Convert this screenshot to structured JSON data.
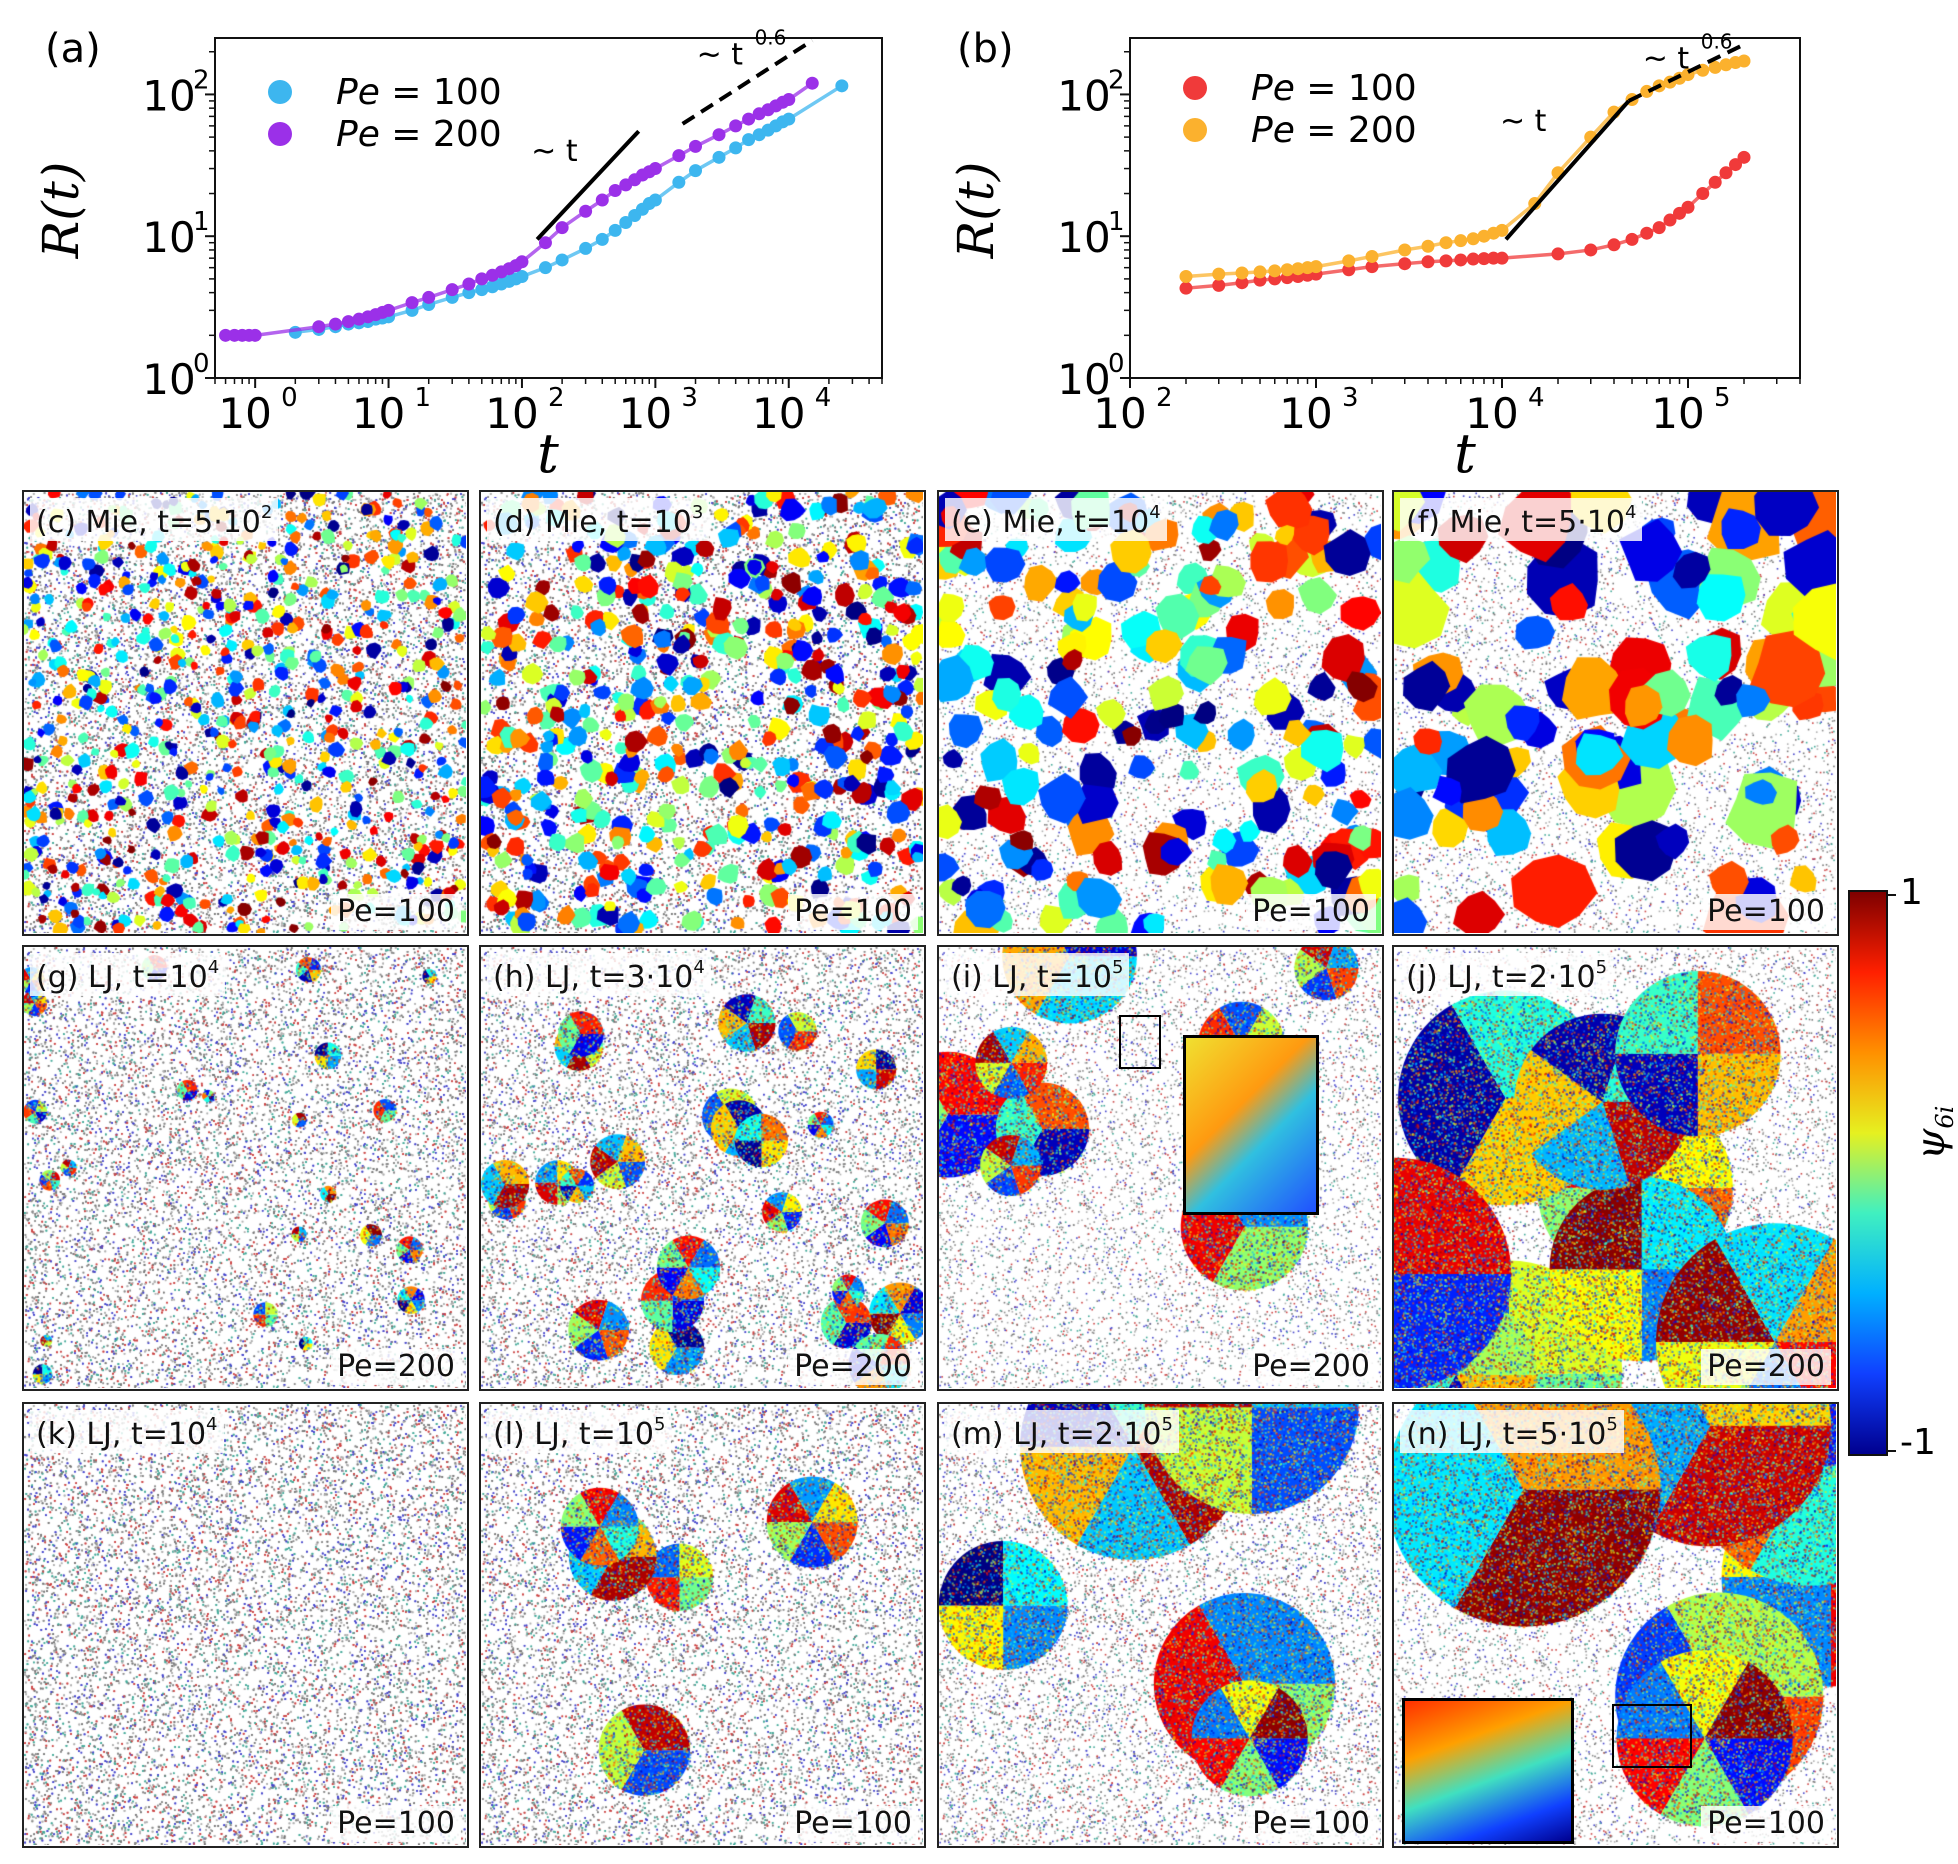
{
  "chart_data": [
    {
      "id": "a",
      "type": "scatter",
      "panel_label": "(a)",
      "xlabel": "t",
      "ylabel": "R(t)",
      "xscale": "log",
      "yscale": "log",
      "xlim": [
        0.5,
        50000
      ],
      "ylim": [
        1,
        250
      ],
      "xticks": [
        1,
        10,
        100,
        1000,
        10000
      ],
      "xtick_exponents": [
        "0",
        "1",
        "2",
        "3",
        "4"
      ],
      "yticks": [
        1,
        10,
        100
      ],
      "ytick_exponents": [
        "0",
        "1",
        "2"
      ],
      "tick_base": "10",
      "legend_position": "upper-left",
      "series": [
        {
          "name": "Pe = 100",
          "legend_italic": "Pe",
          "legend_rest": " = 100",
          "color": "#3db6ef",
          "x": [
            2,
            3,
            4,
            5,
            6,
            7,
            8,
            9,
            10,
            15,
            20,
            30,
            40,
            50,
            60,
            70,
            80,
            90,
            100,
            150,
            200,
            300,
            400,
            500,
            600,
            700,
            800,
            900,
            1000,
            1500,
            2000,
            3000,
            4000,
            5000,
            6000,
            7000,
            8000,
            9000,
            10000,
            25000
          ],
          "y": [
            2.1,
            2.2,
            2.3,
            2.4,
            2.45,
            2.5,
            2.6,
            2.65,
            2.7,
            3.0,
            3.3,
            3.7,
            4.0,
            4.2,
            4.4,
            4.6,
            4.8,
            5.0,
            5.2,
            6.0,
            6.8,
            8.2,
            9.5,
            11,
            12.5,
            14,
            15.5,
            17,
            18,
            24,
            29,
            36,
            42,
            48,
            52,
            56,
            60,
            64,
            67,
            115
          ]
        },
        {
          "name": "Pe = 200",
          "legend_italic": "Pe",
          "legend_rest": " = 200",
          "color": "#9b30e8",
          "x": [
            0.6,
            0.7,
            0.8,
            0.9,
            1,
            3,
            4,
            5,
            6,
            7,
            8,
            9,
            10,
            15,
            20,
            30,
            40,
            50,
            60,
            70,
            80,
            90,
            100,
            150,
            200,
            300,
            400,
            500,
            600,
            700,
            800,
            900,
            1000,
            1500,
            2000,
            3000,
            4000,
            5000,
            6000,
            7000,
            8000,
            9000,
            10000,
            15000
          ],
          "y": [
            2.0,
            2.0,
            2.0,
            2.0,
            2.0,
            2.3,
            2.4,
            2.5,
            2.6,
            2.7,
            2.8,
            2.9,
            3.0,
            3.4,
            3.7,
            4.2,
            4.6,
            5.0,
            5.3,
            5.6,
            5.9,
            6.2,
            6.6,
            9.0,
            11.5,
            15,
            18,
            21,
            23,
            25,
            27,
            28.5,
            30,
            37,
            43,
            52,
            60,
            67,
            73,
            78,
            83,
            88,
            92,
            120
          ]
        }
      ],
      "annotations": [
        {
          "text": "~ t",
          "style": "solid",
          "x1": 130,
          "y1": 9.5,
          "x2": 750,
          "y2": 55
        },
        {
          "text": "~ t",
          "sup": "0.6",
          "style": "dashed",
          "x1": 1600,
          "y1": 62,
          "x2": 15000,
          "y2": 240
        }
      ]
    },
    {
      "id": "b",
      "type": "scatter",
      "panel_label": "(b)",
      "xlabel": "t",
      "ylabel": "R(t)",
      "xscale": "log",
      "yscale": "log",
      "xlim": [
        100,
        400000
      ],
      "ylim": [
        1,
        250
      ],
      "xticks": [
        100,
        1000,
        10000,
        100000
      ],
      "xtick_exponents": [
        "2",
        "3",
        "4",
        "5"
      ],
      "yticks": [
        1,
        10,
        100
      ],
      "ytick_exponents": [
        "0",
        "1",
        "2"
      ],
      "tick_base": "10",
      "legend_position": "upper-left",
      "series": [
        {
          "name": "Pe = 100",
          "legend_italic": "Pe",
          "legend_rest": " = 100",
          "color": "#f03a3a",
          "x": [
            200,
            300,
            400,
            500,
            600,
            700,
            800,
            900,
            1000,
            1500,
            2000,
            3000,
            4000,
            5000,
            6000,
            7000,
            8000,
            9000,
            10000,
            20000,
            30000,
            40000,
            50000,
            60000,
            70000,
            80000,
            90000,
            100000,
            120000,
            140000,
            160000,
            180000,
            200000
          ],
          "y": [
            4.3,
            4.5,
            4.7,
            4.9,
            5.0,
            5.1,
            5.2,
            5.3,
            5.4,
            5.8,
            6.1,
            6.4,
            6.6,
            6.7,
            6.8,
            6.9,
            6.95,
            7.0,
            7.0,
            7.5,
            8.0,
            8.7,
            9.5,
            10.5,
            11.5,
            13,
            14.5,
            16,
            20,
            24,
            28,
            32,
            36
          ]
        },
        {
          "name": "Pe = 200",
          "legend_italic": "Pe",
          "legend_rest": " = 200",
          "color": "#fbb12e",
          "x": [
            200,
            300,
            400,
            500,
            600,
            700,
            800,
            900,
            1000,
            1500,
            2000,
            3000,
            4000,
            5000,
            6000,
            7000,
            8000,
            9000,
            10000,
            15000,
            20000,
            30000,
            40000,
            50000,
            60000,
            70000,
            80000,
            90000,
            100000,
            120000,
            140000,
            160000,
            180000,
            200000
          ],
          "y": [
            5.2,
            5.4,
            5.5,
            5.6,
            5.7,
            5.8,
            5.9,
            6.0,
            6.1,
            6.7,
            7.2,
            8.0,
            8.5,
            9.0,
            9.3,
            9.6,
            10.0,
            10.5,
            11.0,
            17,
            28,
            50,
            75,
            92,
            105,
            115,
            122,
            130,
            138,
            148,
            155,
            162,
            168,
            172
          ]
        }
      ],
      "annotations": [
        {
          "text": "~ t",
          "style": "solid",
          "x1": 10500,
          "y1": 9.5,
          "x2": 48000,
          "y2": 90
        },
        {
          "text": "~ t",
          "sup": "0.6",
          "style": "dashed",
          "x1": 48000,
          "y1": 90,
          "x2": 200000,
          "y2": 225
        }
      ]
    }
  ],
  "colorbar": {
    "label": "ψ",
    "label_sub": "6i",
    "max_label": "1",
    "min_label": "-1"
  },
  "snapshots": [
    {
      "id": "c",
      "label": "(c)",
      "text": "Mie, t=5·10",
      "sup": "2",
      "pe": "Pe=100",
      "style": "mie",
      "density": 0.55,
      "cluster_count": 700,
      "rmin": 4,
      "rmax": 8
    },
    {
      "id": "d",
      "label": "(d)",
      "text": "Mie, t=10",
      "sup": "3",
      "pe": "Pe=100",
      "style": "mie",
      "density": 0.45,
      "cluster_count": 520,
      "rmin": 6,
      "rmax": 12
    },
    {
      "id": "e",
      "label": "(e)",
      "text": "Mie, t=10",
      "sup": "4",
      "pe": "Pe=100",
      "style": "mie",
      "density": 0.1,
      "cluster_count": 190,
      "rmin": 10,
      "rmax": 24
    },
    {
      "id": "f",
      "label": "(f)",
      "text": "Mie, t=5·10",
      "sup": "4",
      "pe": "Pe=100",
      "style": "mie",
      "density": 0.1,
      "cluster_count": 95,
      "rmin": 14,
      "rmax": 40
    },
    {
      "id": "g",
      "label": "(g)",
      "text": "LJ, t=10",
      "sup": "4",
      "pe": "Pe=200",
      "style": "lj",
      "density": 0.4,
      "cluster_count": 22,
      "rmin": 6,
      "rmax": 14
    },
    {
      "id": "h",
      "label": "(h)",
      "text": "LJ, t=3·10",
      "sup": "4",
      "pe": "Pe=200",
      "style": "lj",
      "density": 0.3,
      "cluster_count": 24,
      "rmin": 12,
      "rmax": 34
    },
    {
      "id": "i",
      "label": "(i)",
      "text": "LJ, t=10",
      "sup": "5",
      "pe": "Pe=200",
      "style": "lj",
      "density": 0.12,
      "cluster_count": 8,
      "rmin": 30,
      "rmax": 80
    },
    {
      "id": "j",
      "label": "(j)",
      "text": "LJ, t=2·10",
      "sup": "5",
      "pe": "Pe=200",
      "style": "lj",
      "density": 0.12,
      "cluster_count": 9,
      "rmin": 70,
      "rmax": 120
    },
    {
      "id": "k",
      "label": "(k)",
      "text": "LJ, t=10",
      "sup": "4",
      "pe": "Pe=100",
      "style": "lj",
      "density": 0.45,
      "cluster_count": 0,
      "rmin": 4,
      "rmax": 6
    },
    {
      "id": "l",
      "label": "(l)",
      "text": "LJ, t=10",
      "sup": "5",
      "pe": "Pe=100",
      "style": "lj",
      "density": 0.35,
      "cluster_count": 6,
      "rmin": 25,
      "rmax": 50
    },
    {
      "id": "m",
      "label": "(m)",
      "text": "LJ, t=2·10",
      "sup": "5",
      "pe": "Pe=100",
      "style": "lj",
      "density": 0.2,
      "cluster_count": 6,
      "rmin": 30,
      "rmax": 120
    },
    {
      "id": "n",
      "label": "(n)",
      "text": "LJ, t=5·10",
      "sup": "5",
      "pe": "Pe=100",
      "style": "lj",
      "density": 0.12,
      "cluster_count": 6,
      "rmin": 60,
      "rmax": 150
    }
  ]
}
